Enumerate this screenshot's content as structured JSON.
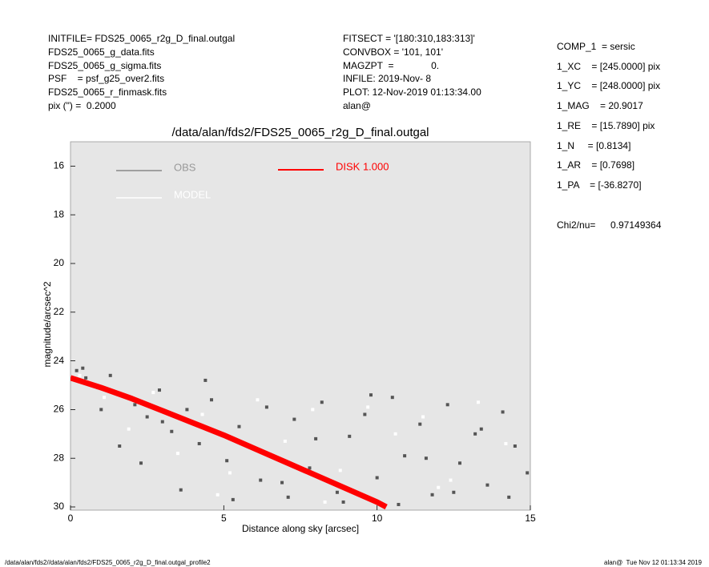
{
  "header": {
    "left": [
      "INITFILE= FDS25_0065_r2g_D_final.outgal",
      "FDS25_0065_g_data.fits",
      "FDS25_0065_g_sigma.fits",
      "PSF    = psf_g25_over2.fits",
      "FDS25_0065_r_finmask.fits",
      "pix (\") =  0.2000"
    ],
    "middle": [
      "FITSECT = '[180:310,183:313]'",
      "CONVBOX = '101, 101'",
      "MAGZPT  =              0.",
      "INFILE: 2019-Nov- 8",
      "PLOT: 12-Nov-2019 01:13:34.00",
      "alan@"
    ],
    "right": [
      "COMP_1  = sersic",
      "1_XC    = [245.0000] pix",
      "1_YC    = [248.0000] pix",
      "1_MAG    = 20.9017",
      "1_RE    = [15.7890] pix",
      "1_N     = [0.8134]",
      "1_AR    = [0.7698]",
      "1_PA    = [-36.8270]"
    ],
    "chi2": [
      "Chi2/nu=",
      "0.97149364"
    ]
  },
  "footer": {
    "left": "/data/alan/fds2//data/alan/fds2/FDS25_0065_r2g_D_final.outgal_profile2",
    "right": "alan@  Tue Nov 12 01:13:34 2019"
  },
  "chart_data": {
    "type": "scatter",
    "title": "/data/alan/fds2/FDS25_0065_r2g_D_final.outgal",
    "x_label": "Distance along sky [arcsec]",
    "y_label": "magnitude/arcsec^2",
    "xlim": [
      0,
      15
    ],
    "xticks": [
      0,
      5,
      10,
      15
    ],
    "ylim": [
      30,
      15
    ],
    "yticks": [
      16,
      18,
      20,
      22,
      24,
      26,
      28,
      30
    ],
    "series": [
      {
        "name": "OBS",
        "color": "#555555",
        "mode": "points",
        "x": [
          0.2,
          0.5,
          0.9,
          1.3,
          1.7,
          2.1,
          2.5,
          2.9,
          3.3,
          3.8,
          4.2,
          4.6,
          5.1,
          5.5,
          6.0,
          6.4,
          6.9,
          7.3,
          7.8,
          8.2,
          8.7,
          9.1,
          9.6,
          10.0,
          10.5,
          10.9,
          11.4,
          11.8,
          12.3,
          12.7,
          13.2,
          13.6,
          14.1,
          14.5,
          14.9,
          0.4,
          1.0,
          1.6,
          2.3,
          3.0,
          3.6,
          4.4,
          5.3,
          6.2,
          7.1,
          8.0,
          8.9,
          9.8,
          10.7,
          11.6,
          12.5,
          13.4,
          14.3
        ],
        "values": [
          24.4,
          24.7,
          25.1,
          24.6,
          25.4,
          25.8,
          26.3,
          25.2,
          26.9,
          26.0,
          27.4,
          25.6,
          28.1,
          26.7,
          27.6,
          25.9,
          29.0,
          26.4,
          28.4,
          25.7,
          29.4,
          27.1,
          26.2,
          28.8,
          25.5,
          27.9,
          26.6,
          29.5,
          25.8,
          28.2,
          27.0,
          29.1,
          26.1,
          27.5,
          28.6,
          24.3,
          26.0,
          27.5,
          28.2,
          26.5,
          29.3,
          24.8,
          29.7,
          28.9,
          29.6,
          27.2,
          29.8,
          25.4,
          29.9,
          28.0,
          29.4,
          26.8,
          29.6
        ]
      },
      {
        "name": "MODEL",
        "color": "#ffffff",
        "mode": "points",
        "x": [
          0.3,
          1.1,
          1.9,
          2.7,
          3.5,
          4.3,
          5.2,
          6.1,
          7.0,
          7.9,
          8.8,
          9.7,
          10.6,
          11.5,
          12.4,
          13.3,
          14.2,
          4.8,
          8.3,
          12.0
        ],
        "values": [
          24.6,
          25.5,
          26.8,
          25.3,
          27.8,
          26.2,
          28.6,
          25.6,
          27.3,
          26.0,
          28.5,
          25.9,
          27.0,
          26.3,
          28.9,
          25.7,
          27.4,
          29.5,
          29.8,
          29.2
        ]
      },
      {
        "name": "DISK  1.000",
        "color": "#ff0000",
        "mode": "line",
        "x": [
          0,
          1,
          2,
          3,
          4,
          5,
          6,
          7,
          8,
          9,
          10,
          10.3
        ],
        "values": [
          24.7,
          25.1,
          25.55,
          26.05,
          26.55,
          27.05,
          27.6,
          28.15,
          28.7,
          29.25,
          29.8,
          30.0
        ]
      }
    ]
  }
}
